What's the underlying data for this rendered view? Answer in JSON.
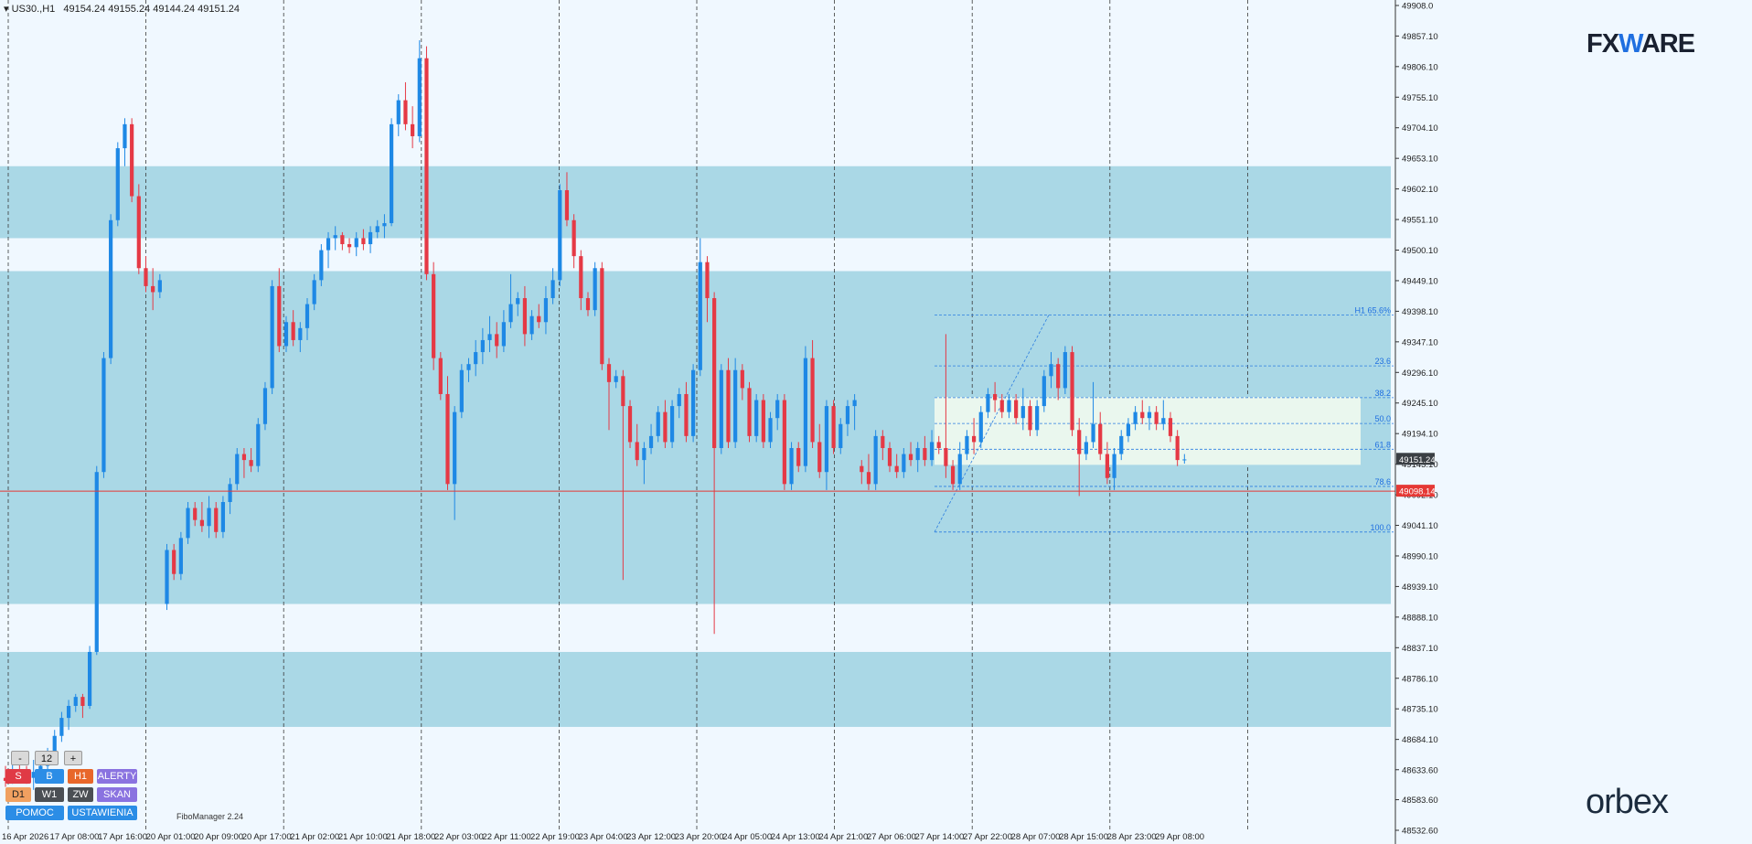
{
  "header": {
    "symbol": "US30.,H1",
    "ohlc": "49154.24 49155.24 49144.24 49151.24"
  },
  "brand": {
    "fxware_a": "FX",
    "fxware_b": "W",
    "fxware_c": "ARE",
    "orbex": "orbex"
  },
  "plugin_label": "FiboManager 2.24",
  "panel": {
    "minus": "-",
    "value": "12",
    "plus": "+",
    "row1": [
      "S",
      "B",
      "H1",
      "ALERTY"
    ],
    "row2": [
      "D1",
      "W1",
      "ZW",
      "SKAN"
    ],
    "row3": [
      "POMOC",
      "USTAWIENIA"
    ]
  },
  "colors": {
    "bull": "#1e88e5",
    "bear": "#e53945",
    "zone": "#aad8e6",
    "fibzone": "#eaf7ee",
    "hline": "#e53935",
    "bg": "#f0f8ff"
  },
  "chart_data": {
    "type": "candlestick",
    "ylim": [
      48532.6,
      49908.0
    ],
    "y_ticks": [
      "49908.0",
      "49857.10",
      "49806.10",
      "49755.10",
      "49704.10",
      "49653.10",
      "49602.10",
      "49551.10",
      "49500.10",
      "49449.10",
      "49398.10",
      "49347.10",
      "49296.10",
      "49245.10",
      "49194.10",
      "49143.10",
      "49092.10",
      "49041.10",
      "48990.10",
      "48939.10",
      "48888.10",
      "48837.10",
      "48786.10",
      "48735.10",
      "48684.10",
      "48633.60",
      "48583.60",
      "48532.60"
    ],
    "x_labels": [
      "16 Apr 2026",
      "17 Apr 08:00",
      "17 Apr 16:00",
      "20 Apr 01:00",
      "20 Apr 09:00",
      "20 Apr 17:00",
      "21 Apr 02:00",
      "21 Apr 10:00",
      "21 Apr 18:00",
      "22 Apr 03:00",
      "22 Apr 11:00",
      "22 Apr 19:00",
      "23 Apr 04:00",
      "23 Apr 12:00",
      "23 Apr 20:00",
      "24 Apr 05:00",
      "24 Apr 13:00",
      "24 Apr 21:00",
      "27 Apr 06:00",
      "27 Apr 14:00",
      "27 Apr 22:00",
      "28 Apr 07:00",
      "28 Apr 15:00",
      "28 Apr 23:00",
      "29 Apr 08:00"
    ],
    "current_price": "49151.24",
    "line_price": "49098.14",
    "zones": [
      [
        49520,
        49640
      ],
      [
        48910,
        49465
      ],
      [
        48705,
        48830
      ]
    ],
    "fib_box": [
      49142,
      49255
    ],
    "fib_levels": [
      {
        "label": "H1 65.6%",
        "price": 49392
      },
      {
        "label": "23.6",
        "price": 49307
      },
      {
        "label": "38.2",
        "price": 49254
      },
      {
        "label": "50.0",
        "price": 49211
      },
      {
        "label": "61.8",
        "price": 49168
      },
      {
        "label": "78.6",
        "price": 49106
      },
      {
        "label": "100.0",
        "price": 49030
      }
    ],
    "candles": [
      [
        48620,
        48640,
        48605,
        48615
      ],
      [
        48615,
        48650,
        48610,
        48630
      ],
      [
        48630,
        48645,
        48620,
        48625
      ],
      [
        48625,
        48640,
        48610,
        48620
      ],
      [
        48620,
        48650,
        48600,
        48630
      ],
      [
        48630,
        48660,
        48620,
        48640
      ],
      [
        48640,
        48670,
        48630,
        48660
      ],
      [
        48660,
        48700,
        48650,
        48690
      ],
      [
        48690,
        48730,
        48680,
        48720
      ],
      [
        48720,
        48750,
        48700,
        48740
      ],
      [
        48740,
        48760,
        48730,
        48755
      ],
      [
        48755,
        48760,
        48720,
        48740
      ],
      [
        48740,
        48840,
        48735,
        48830
      ],
      [
        48830,
        49140,
        48825,
        49130
      ],
      [
        49130,
        49330,
        49120,
        49320
      ],
      [
        49320,
        49560,
        49310,
        49550
      ],
      [
        49550,
        49680,
        49540,
        49670
      ],
      [
        49670,
        49720,
        49640,
        49710
      ],
      [
        49710,
        49720,
        49580,
        49590
      ],
      [
        49590,
        49610,
        49460,
        49470
      ],
      [
        49470,
        49490,
        49430,
        49440
      ],
      [
        49440,
        49470,
        49400,
        49430
      ],
      [
        49430,
        49460,
        49420,
        49450
      ],
      [
        48910,
        49010,
        48900,
        49000
      ],
      [
        49000,
        49010,
        48950,
        48960
      ],
      [
        48960,
        49030,
        48950,
        49020
      ],
      [
        49020,
        49080,
        49010,
        49070
      ],
      [
        49070,
        49080,
        49040,
        49050
      ],
      [
        49050,
        49080,
        49030,
        49040
      ],
      [
        49040,
        49090,
        49020,
        49070
      ],
      [
        49070,
        49080,
        49020,
        49030
      ],
      [
        49030,
        49090,
        49020,
        49080
      ],
      [
        49080,
        49120,
        49060,
        49110
      ],
      [
        49110,
        49170,
        49100,
        49160
      ],
      [
        49160,
        49170,
        49120,
        49150
      ],
      [
        49150,
        49170,
        49130,
        49140
      ],
      [
        49140,
        49220,
        49130,
        49210
      ],
      [
        49210,
        49280,
        49200,
        49270
      ],
      [
        49270,
        49450,
        49260,
        49440
      ],
      [
        49440,
        49470,
        49330,
        49340
      ],
      [
        49340,
        49390,
        49330,
        49380
      ],
      [
        49380,
        49400,
        49340,
        49350
      ],
      [
        49350,
        49380,
        49330,
        49370
      ],
      [
        49370,
        49420,
        49350,
        49410
      ],
      [
        49410,
        49460,
        49400,
        49450
      ],
      [
        49450,
        49510,
        49440,
        49500
      ],
      [
        49500,
        49530,
        49470,
        49520
      ],
      [
        49520,
        49540,
        49500,
        49525
      ],
      [
        49525,
        49530,
        49500,
        49510
      ],
      [
        49510,
        49520,
        49495,
        49505
      ],
      [
        49505,
        49530,
        49490,
        49520
      ],
      [
        49520,
        49535,
        49500,
        49510
      ],
      [
        49510,
        49540,
        49495,
        49530
      ],
      [
        49530,
        49550,
        49520,
        49540
      ],
      [
        49540,
        49560,
        49520,
        49545
      ],
      [
        49545,
        49720,
        49540,
        49710
      ],
      [
        49710,
        49760,
        49690,
        49750
      ],
      [
        49750,
        49780,
        49700,
        49710
      ],
      [
        49710,
        49740,
        49670,
        49690
      ],
      [
        49690,
        49850,
        49680,
        49820
      ],
      [
        49820,
        49840,
        49450,
        49460
      ],
      [
        49460,
        49480,
        49300,
        49320
      ],
      [
        49320,
        49330,
        49250,
        49260
      ],
      [
        49260,
        49290,
        49100,
        49110
      ],
      [
        49110,
        49240,
        49050,
        49230
      ],
      [
        49230,
        49310,
        49220,
        49300
      ],
      [
        49300,
        49320,
        49280,
        49310
      ],
      [
        49310,
        49350,
        49290,
        49330
      ],
      [
        49330,
        49370,
        49310,
        49350
      ],
      [
        49350,
        49390,
        49330,
        49360
      ],
      [
        49360,
        49380,
        49320,
        49340
      ],
      [
        49340,
        49400,
        49330,
        49380
      ],
      [
        49380,
        49460,
        49370,
        49410
      ],
      [
        49410,
        49430,
        49390,
        49420
      ],
      [
        49420,
        49440,
        49340,
        49360
      ],
      [
        49360,
        49400,
        49350,
        49390
      ],
      [
        49390,
        49410,
        49370,
        49380
      ],
      [
        49380,
        49440,
        49360,
        49420
      ],
      [
        49420,
        49470,
        49410,
        49450
      ],
      [
        49450,
        49610,
        49440,
        49600
      ],
      [
        49600,
        49630,
        49540,
        49550
      ],
      [
        49550,
        49560,
        49470,
        49490
      ],
      [
        49490,
        49500,
        49400,
        49420
      ],
      [
        49420,
        49430,
        49390,
        49400
      ],
      [
        49400,
        49480,
        49390,
        49470
      ],
      [
        49470,
        49480,
        49300,
        49310
      ],
      [
        49310,
        49320,
        49200,
        49280
      ],
      [
        49280,
        49300,
        49270,
        49290
      ],
      [
        49290,
        49300,
        48950,
        49240
      ],
      [
        49240,
        49250,
        49170,
        49180
      ],
      [
        49180,
        49210,
        49140,
        49150
      ],
      [
        49150,
        49180,
        49110,
        49170
      ],
      [
        49170,
        49210,
        49160,
        49190
      ],
      [
        49190,
        49240,
        49180,
        49230
      ],
      [
        49230,
        49250,
        49170,
        49180
      ],
      [
        49180,
        49250,
        49170,
        49240
      ],
      [
        49240,
        49270,
        49220,
        49260
      ],
      [
        49260,
        49280,
        49180,
        49190
      ],
      [
        49190,
        49310,
        49180,
        49300
      ],
      [
        49300,
        49520,
        49290,
        49480
      ],
      [
        49480,
        49490,
        49380,
        49420
      ],
      [
        49420,
        49430,
        48860,
        49170
      ],
      [
        49170,
        49310,
        49160,
        49300
      ],
      [
        49300,
        49320,
        49170,
        49180
      ],
      [
        49180,
        49320,
        49170,
        49300
      ],
      [
        49300,
        49310,
        49250,
        49270
      ],
      [
        49270,
        49280,
        49180,
        49190
      ],
      [
        49190,
        49260,
        49180,
        49250
      ],
      [
        49250,
        49260,
        49170,
        49180
      ],
      [
        49180,
        49230,
        49170,
        49220
      ],
      [
        49220,
        49260,
        49200,
        49250
      ],
      [
        49250,
        49260,
        49100,
        49110
      ],
      [
        49110,
        49180,
        49100,
        49170
      ],
      [
        49170,
        49180,
        49130,
        49140
      ],
      [
        49140,
        49340,
        49130,
        49320
      ],
      [
        49320,
        49350,
        49170,
        49180
      ],
      [
        49180,
        49210,
        49120,
        49130
      ],
      [
        49130,
        49250,
        49100,
        49240
      ],
      [
        49240,
        49250,
        49160,
        49170
      ],
      [
        49170,
        49220,
        49160,
        49210
      ],
      [
        49210,
        49250,
        49190,
        49240
      ],
      [
        49240,
        49260,
        49200,
        49250
      ],
      [
        49140,
        49150,
        49110,
        49130
      ],
      [
        49130,
        49160,
        49100,
        49110
      ],
      [
        49110,
        49200,
        49100,
        49190
      ],
      [
        49190,
        49200,
        49150,
        49170
      ],
      [
        49170,
        49180,
        49130,
        49140
      ],
      [
        49140,
        49160,
        49120,
        49130
      ],
      [
        49130,
        49170,
        49120,
        49160
      ],
      [
        49160,
        49180,
        49140,
        49150
      ],
      [
        49150,
        49180,
        49130,
        49170
      ],
      [
        49170,
        49190,
        49140,
        49150
      ],
      [
        49150,
        49200,
        49140,
        49180
      ],
      [
        49180,
        49190,
        49160,
        49170
      ],
      [
        49170,
        49360,
        49120,
        49140
      ],
      [
        49140,
        49150,
        49100,
        49110
      ],
      [
        49110,
        49180,
        49100,
        49160
      ],
      [
        49160,
        49200,
        49150,
        49190
      ],
      [
        49190,
        49220,
        49160,
        49180
      ],
      [
        49180,
        49240,
        49170,
        49230
      ],
      [
        49230,
        49270,
        49220,
        49260
      ],
      [
        49260,
        49280,
        49230,
        49250
      ],
      [
        49250,
        49260,
        49220,
        49230
      ],
      [
        49230,
        49260,
        49220,
        49250
      ],
      [
        49250,
        49260,
        49210,
        49220
      ],
      [
        49220,
        49270,
        49200,
        49240
      ],
      [
        49240,
        49250,
        49190,
        49200
      ],
      [
        49200,
        49250,
        49190,
        49240
      ],
      [
        49240,
        49300,
        49230,
        49290
      ],
      [
        49290,
        49330,
        49270,
        49310
      ],
      [
        49310,
        49320,
        49250,
        49270
      ],
      [
        49270,
        49340,
        49260,
        49330
      ],
      [
        49330,
        49340,
        49190,
        49200
      ],
      [
        49200,
        49220,
        49090,
        49160
      ],
      [
        49160,
        49190,
        49150,
        49180
      ],
      [
        49180,
        49280,
        49170,
        49210
      ],
      [
        49210,
        49230,
        49150,
        49160
      ],
      [
        49160,
        49180,
        49110,
        49120
      ],
      [
        49120,
        49170,
        49100,
        49160
      ],
      [
        49160,
        49200,
        49150,
        49190
      ],
      [
        49190,
        49220,
        49180,
        49210
      ],
      [
        49210,
        49240,
        49200,
        49230
      ],
      [
        49230,
        49250,
        49210,
        49220
      ],
      [
        49220,
        49240,
        49200,
        49230
      ],
      [
        49230,
        49240,
        49200,
        49210
      ],
      [
        49210,
        49250,
        49200,
        49220
      ],
      [
        49220,
        49230,
        49180,
        49190
      ],
      [
        49190,
        49200,
        49140,
        49150
      ],
      [
        49150,
        49160,
        49144,
        49151
      ]
    ]
  }
}
